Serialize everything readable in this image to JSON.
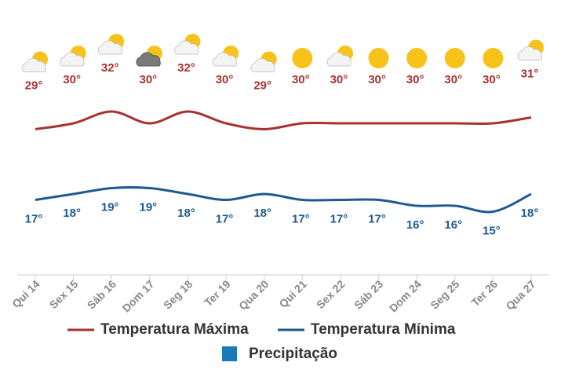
{
  "chart_data": {
    "type": "line",
    "categories": [
      "Qui 14",
      "Sex 15",
      "Sáb 16",
      "Dom 17",
      "Seg 18",
      "Ter 19",
      "Qua 20",
      "Qui 21",
      "Sex 22",
      "Sáb 23",
      "Dom 24",
      "Seg 25",
      "Ter 26",
      "Qua 27"
    ],
    "series": [
      {
        "name": "Temperatura Máxima",
        "color": "#a83232",
        "values": [
          29,
          30,
          32,
          30,
          32,
          30,
          29,
          30,
          30,
          30,
          30,
          30,
          30,
          31
        ],
        "value_labels": [
          "29°",
          "30°",
          "32°",
          "30°",
          "32°",
          "30°",
          "29°",
          "30°",
          "30°",
          "30°",
          "30°",
          "30°",
          "30°",
          "31°"
        ]
      },
      {
        "name": "Temperatura Mínima",
        "color": "#1f5a8f",
        "values": [
          17,
          18,
          19,
          19,
          18,
          17,
          18,
          17,
          17,
          17,
          16,
          16,
          15,
          18
        ],
        "value_labels": [
          "17°",
          "18°",
          "19°",
          "19°",
          "18°",
          "17°",
          "18°",
          "17°",
          "17°",
          "17°",
          "16°",
          "16°",
          "15°",
          "18°"
        ]
      },
      {
        "name": "Precipitação",
        "color": "#1a7ab8",
        "values": [
          null,
          null,
          null,
          null,
          null,
          null,
          null,
          null,
          null,
          null,
          null,
          null,
          null,
          null
        ]
      }
    ]
  }
}
